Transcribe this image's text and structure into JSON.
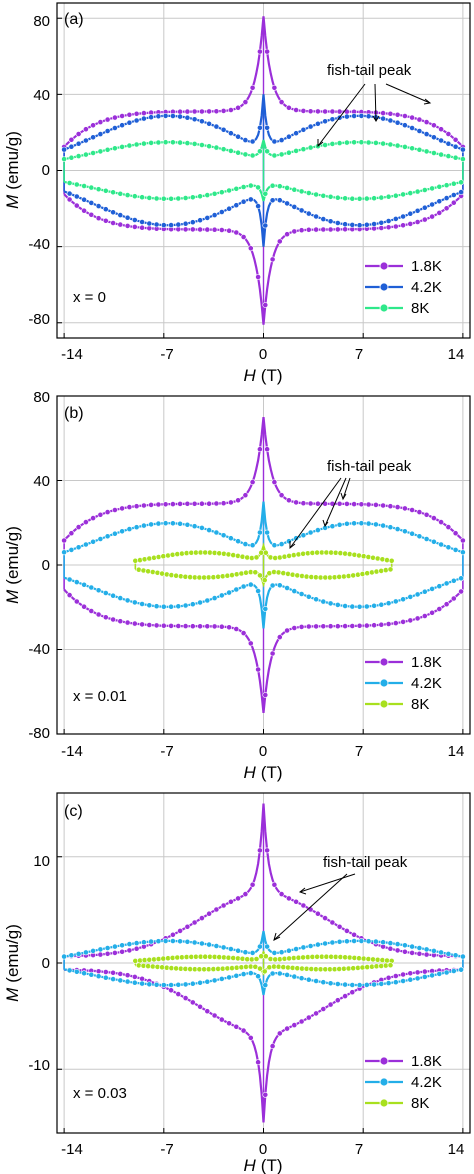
{
  "figure": {
    "shared_xlabel_var": "H",
    "shared_xlabel_unit": "(T)"
  },
  "chart_data": [
    {
      "type": "line",
      "panel_label": "(a)",
      "annotation": "fish-tail peak",
      "inset_label": "x = 0",
      "ylabel_var": "M",
      "ylabel_unit": "(emu/g)",
      "xlabel_var": "H",
      "xlabel_unit": "(T)",
      "xlim": [
        -14.5,
        14.5
      ],
      "ylim": [
        -88,
        88
      ],
      "xticks": [
        "-14",
        "-7",
        "0",
        "7",
        "14"
      ],
      "xtick_values": [
        -14,
        -7,
        0,
        7,
        14
      ],
      "yticks": [
        "80",
        "40",
        "0",
        "-40",
        "-80"
      ],
      "ytick_values": [
        80,
        40,
        0,
        -40,
        -80
      ],
      "grid": true,
      "legend_position": "bottom-right",
      "series": [
        {
          "name": "1.8K",
          "color": "#9b2fd9",
          "curve": "plateau",
          "peak": 81,
          "h": 31,
          "L": 14,
          "xmax": 14
        },
        {
          "name": "4.2K",
          "color": "#1f5fd6",
          "curve": "dome",
          "peak": 40,
          "A": 18,
          "B": 11,
          "c": 11,
          "L": 14,
          "xmax": 14
        },
        {
          "name": "8K",
          "color": "#2ee88a",
          "curve": "dome",
          "peak": 16,
          "A": 9,
          "B": 6,
          "c": 12,
          "L": 14,
          "xmax": 14
        }
      ]
    },
    {
      "type": "line",
      "panel_label": "(b)",
      "annotation": "fish-tail peak",
      "inset_label": "x = 0.01",
      "ylabel_var": "M",
      "ylabel_unit": "(emu/g)",
      "xlabel_var": "H",
      "xlabel_unit": "(T)",
      "xlim": [
        -14.5,
        14.5
      ],
      "ylim": [
        -80,
        80
      ],
      "xticks": [
        "-14",
        "-7",
        "0",
        "7",
        "14"
      ],
      "xtick_values": [
        -14,
        -7,
        0,
        7,
        14
      ],
      "yticks": [
        "80",
        "40",
        "0",
        "-40",
        "-80"
      ],
      "ytick_values": [
        80,
        40,
        0,
        -40,
        -80
      ],
      "grid": true,
      "legend_position": "bottom-right",
      "series": [
        {
          "name": "1.8K",
          "color": "#9b2fd9",
          "curve": "plateau",
          "peak": 70,
          "h": 29,
          "L": 14,
          "xmax": 14
        },
        {
          "name": "4.2K",
          "color": "#23aee8",
          "curve": "dome",
          "peak": 30,
          "A": 14,
          "B": 6,
          "c": 15,
          "L": 14,
          "xmax": 14
        },
        {
          "name": "8K",
          "color": "#a8e01e",
          "curve": "dome",
          "peak": 9,
          "A": 4,
          "B": 2,
          "c": 10,
          "L": 9,
          "xmax": 9
        }
      ]
    },
    {
      "type": "line",
      "panel_label": "(c)",
      "annotation": "fish-tail peak",
      "inset_label": "x = 0.03",
      "ylabel_var": "M",
      "ylabel_unit": "(emu/g)",
      "xlabel_var": "H",
      "xlabel_unit": "(T)",
      "xlim": [
        -14.5,
        14.5
      ],
      "ylim": [
        -16,
        16
      ],
      "xticks": [
        "-14",
        "-7",
        "0",
        "7",
        "14"
      ],
      "xtick_values": [
        -14,
        -7,
        0,
        7,
        14
      ],
      "yticks": [
        "10",
        "0",
        "-10"
      ],
      "ytick_values": [
        10,
        0,
        -10
      ],
      "grid": true,
      "legend_position": "bottom-right",
      "series": [
        {
          "name": "1.8K",
          "color": "#9b2fd9",
          "curve": "bell",
          "peak": 15,
          "h": 6.5,
          "L": 14,
          "xmax": 14
        },
        {
          "name": "4.2K",
          "color": "#23aee8",
          "curve": "dome",
          "peak": 3,
          "A": 1.5,
          "B": 0.6,
          "c": 3.5,
          "L": 14,
          "xmax": 14
        },
        {
          "name": "8K",
          "color": "#a8e01e",
          "curve": "dome",
          "peak": 1,
          "A": 0.4,
          "B": 0.2,
          "c": 4,
          "L": 9,
          "xmax": 9
        }
      ]
    }
  ]
}
